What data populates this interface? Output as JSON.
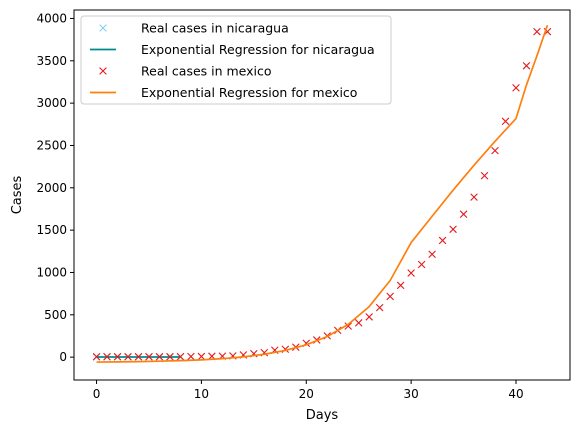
{
  "chart_data": {
    "type": "line",
    "title": "",
    "xlabel": "Days",
    "ylabel": "Cases",
    "xlim": [
      -2.15,
      45.15
    ],
    "ylim": [
      -270,
      4100
    ],
    "xticks": [
      0,
      10,
      20,
      30,
      40
    ],
    "yticks": [
      0,
      500,
      1000,
      1500,
      2000,
      2500,
      3000,
      3500,
      4000
    ],
    "grid": false,
    "legend_position": "top-left",
    "series": [
      {
        "name": "Real cases in nicaragua",
        "kind": "scatter",
        "marker": "x",
        "color": "#87ceeb",
        "x": [
          0,
          1,
          2,
          3,
          4,
          5,
          6,
          7,
          8
        ],
        "y": [
          2,
          2,
          2,
          2,
          2,
          2,
          2,
          2,
          2
        ]
      },
      {
        "name": "Exponential Regression for nicaragua",
        "kind": "line",
        "color": "#008b8b",
        "x": [
          0,
          1,
          2,
          3,
          4,
          5,
          6,
          7,
          8
        ],
        "y": [
          2,
          2,
          2,
          2,
          2,
          2,
          2,
          2,
          2
        ]
      },
      {
        "name": "Real cases in mexico",
        "kind": "scatter",
        "marker": "x",
        "color": "#e41a1c",
        "x": [
          0,
          1,
          2,
          3,
          4,
          5,
          6,
          7,
          8,
          9,
          10,
          11,
          12,
          13,
          14,
          15,
          16,
          17,
          18,
          19,
          20,
          21,
          22,
          23,
          24,
          25,
          26,
          27,
          28,
          29,
          30,
          31,
          32,
          33,
          34,
          35,
          36,
          37,
          38,
          39,
          40,
          41,
          42,
          43
        ],
        "y": [
          5,
          5,
          5,
          5,
          5,
          5,
          5,
          5,
          6,
          7,
          8,
          11,
          12,
          15,
          26,
          41,
          53,
          82,
          93,
          118,
          164,
          203,
          251,
          316,
          367,
          405,
          475,
          585,
          717,
          848,
          993,
          1094,
          1215,
          1378,
          1510,
          1688,
          1890,
          2143,
          2439,
          2785,
          3181,
          3441,
          3844,
          3844
        ]
      },
      {
        "name": "Exponential Regression for mexico",
        "kind": "line",
        "color": "#ff7f0e",
        "x": [
          0,
          2,
          4,
          6,
          8,
          10,
          12,
          14,
          16,
          18,
          20,
          22,
          24,
          26,
          28,
          30,
          32,
          34,
          36,
          38,
          40,
          41,
          42,
          43
        ],
        "y": [
          -58,
          -56,
          -53,
          -48,
          -41,
          -32,
          -18,
          3,
          34,
          79,
          146,
          244,
          387,
          597,
          905,
          1353,
          1664,
          1972,
          2267,
          2549,
          2818,
          3215,
          3560,
          3920
        ]
      }
    ]
  }
}
